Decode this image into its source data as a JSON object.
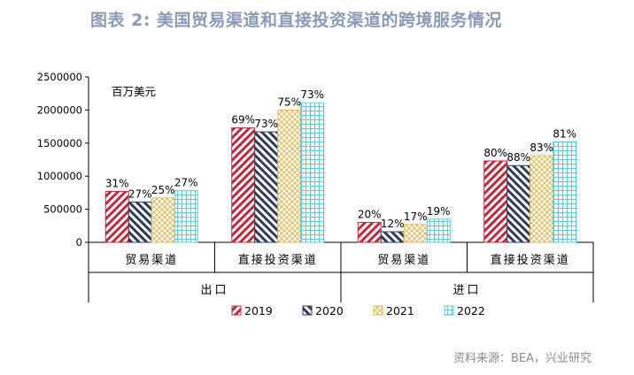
{
  "title": "图表 2:  美国贸易渠道和直接投资渠道的跨境服务情况",
  "source": "资料来源：BEA，兴业研究",
  "colors": {
    "2019": "#c0283d",
    "2020": "#2f3c55",
    "2021": "#e3b74e",
    "2022": "#5fcad0"
  },
  "chart_data": {
    "type": "bar",
    "unit_label": "百万美元",
    "ylim": [
      0,
      2500000
    ],
    "yticks": [
      "0",
      "500000",
      "1000000",
      "1500000",
      "2000000",
      "2500000"
    ],
    "groups": [
      {
        "name": "出口",
        "categories": [
          "贸易渠道",
          "直接投资渠道"
        ]
      },
      {
        "name": "进口",
        "categories": [
          "贸易渠道",
          "直接投资渠道"
        ]
      }
    ],
    "categories": [
      "贸易渠道",
      "直接投资渠道",
      "贸易渠道",
      "直接投资渠道"
    ],
    "series": [
      {
        "name": "2019",
        "values": [
          770000,
          1730000,
          300000,
          1230000
        ],
        "labels": [
          "31%",
          "69%",
          "20%",
          "80%"
        ]
      },
      {
        "name": "2020",
        "values": [
          610000,
          1670000,
          160000,
          1160000
        ],
        "labels": [
          "27%",
          "73%",
          "12%",
          "88%"
        ]
      },
      {
        "name": "2021",
        "values": [
          670000,
          2000000,
          270000,
          1310000
        ],
        "labels": [
          "25%",
          "75%",
          "17%",
          "83%"
        ]
      },
      {
        "name": "2022",
        "values": [
          780000,
          2110000,
          350000,
          1520000
        ],
        "labels": [
          "27%",
          "73%",
          "19%",
          "81%"
        ]
      }
    ],
    "legend_position": "bottom",
    "grid": false
  }
}
